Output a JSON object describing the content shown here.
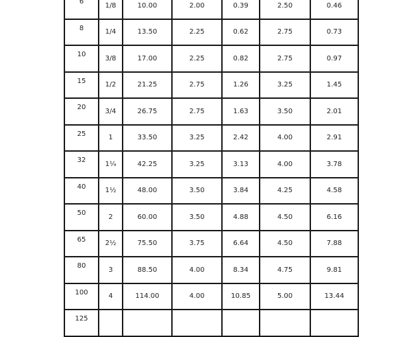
{
  "rows": [
    [
      "6",
      "1/8",
      "10.00",
      "2.00",
      "0.39",
      "2.50",
      "0.46"
    ],
    [
      "8",
      "1/4",
      "13.50",
      "2.25",
      "0.62",
      "2.75",
      "0.73"
    ],
    [
      "10",
      "3/8",
      "17.00",
      "2.25",
      "0.82",
      "2.75",
      "0.97"
    ],
    [
      "15",
      "1/2",
      "21.25",
      "2.75",
      "1.26",
      "3.25",
      "1.45"
    ],
    [
      "20",
      "3/4",
      "26.75",
      "2.75",
      "1.63",
      "3.50",
      "2.01"
    ],
    [
      "25",
      "1",
      "33.50",
      "3.25",
      "2.42",
      "4.00",
      "2.91"
    ],
    [
      "32",
      "1¼",
      "42.25",
      "3.25",
      "3.13",
      "4.00",
      "3.78"
    ],
    [
      "40",
      "1½",
      "48.00",
      "3.50",
      "3.84",
      "4.25",
      "4.58"
    ],
    [
      "50",
      "2",
      "60.00",
      "3.50",
      "4.88",
      "4.50",
      "6.16"
    ],
    [
      "65",
      "2½",
      "75.50",
      "3.75",
      "6.64",
      "4.50",
      "7.88"
    ],
    [
      "80",
      "3",
      "88.50",
      "4.00",
      "8.34",
      "4.75",
      "9.81"
    ],
    [
      "100",
      "4",
      "114.00",
      "4.00",
      "10.85",
      "5.00",
      "13.44"
    ],
    [
      "125",
      "",
      "",
      "",
      "",
      "",
      ""
    ]
  ]
}
